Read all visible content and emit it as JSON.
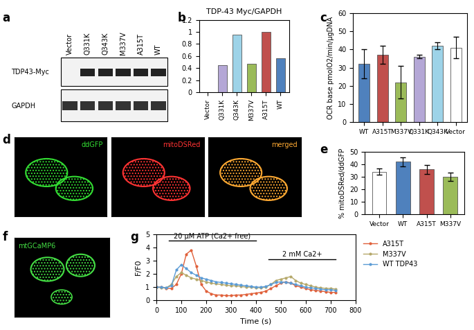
{
  "chart_data": [
    {
      "panel": "b",
      "type": "bar",
      "title": "TDP-43 Myc/GAPDH",
      "categories": [
        "Vector",
        "Q331K",
        "Q343K",
        "M337V",
        "A315T",
        "WT"
      ],
      "values": [
        0,
        0.45,
        0.95,
        0.47,
        1.0,
        0.56
      ],
      "colors": [
        "#ffffff",
        "#b4a7d6",
        "#9dd3e8",
        "#9bbb59",
        "#c0504d",
        "#4f81bd"
      ],
      "ylim": [
        0,
        1.2
      ],
      "yticks": [
        0,
        0.2,
        0.4,
        0.6,
        0.8,
        1,
        1.2
      ]
    },
    {
      "panel": "c",
      "type": "bar",
      "ylabel": "OCR base pmolO2/min/μgDNA",
      "categories": [
        "WT",
        "A315T",
        "M337V",
        "Q331K",
        "Q343K",
        "Vector"
      ],
      "values": [
        32,
        37,
        22,
        36,
        42,
        41
      ],
      "errors": [
        8,
        5,
        9,
        1,
        2,
        6
      ],
      "colors": [
        "#4f81bd",
        "#c0504d",
        "#9bbb59",
        "#b4a7d6",
        "#9dd3e8",
        "#ffffff"
      ],
      "ylim": [
        0,
        60
      ],
      "yticks": [
        0,
        10,
        20,
        30,
        40,
        50,
        60
      ]
    },
    {
      "panel": "e",
      "type": "bar",
      "ylabel": "% mitoDSRed/ddGFP",
      "categories": [
        "Vector",
        "WT",
        "A315T",
        "M337V"
      ],
      "values": [
        34,
        42,
        36,
        30
      ],
      "errors": [
        2.5,
        3.5,
        3.5,
        3.5
      ],
      "colors": [
        "#ffffff",
        "#4f81bd",
        "#c0504d",
        "#9bbb59"
      ],
      "ylim": [
        0,
        50
      ],
      "yticks": [
        0,
        10,
        20,
        30,
        40,
        50
      ]
    },
    {
      "panel": "g",
      "type": "line",
      "xlabel": "Time (s)",
      "ylabel": "F/F0",
      "x": [
        0,
        20,
        40,
        60,
        80,
        100,
        120,
        140,
        160,
        180,
        200,
        220,
        240,
        260,
        280,
        300,
        320,
        340,
        360,
        380,
        400,
        420,
        440,
        460,
        480,
        500,
        520,
        540,
        560,
        580,
        600,
        620,
        640,
        660,
        680,
        700,
        720
      ],
      "series": [
        {
          "name": "A315T",
          "color": "#e0603a",
          "marker": "o",
          "values": [
            1.0,
            1.0,
            0.9,
            0.9,
            1.2,
            2.0,
            3.5,
            3.8,
            2.6,
            1.2,
            0.7,
            0.5,
            0.4,
            0.4,
            0.35,
            0.35,
            0.4,
            0.4,
            0.45,
            0.5,
            0.55,
            0.6,
            0.7,
            0.9,
            1.1,
            1.3,
            1.4,
            1.3,
            1.1,
            1.0,
            0.9,
            0.8,
            0.75,
            0.7,
            0.65,
            0.6,
            0.6
          ]
        },
        {
          "name": "M337V",
          "color": "#b5a86a",
          "marker": "o",
          "values": [
            1.0,
            0.95,
            0.95,
            1.2,
            1.8,
            2.1,
            1.9,
            1.7,
            1.6,
            1.5,
            1.4,
            1.3,
            1.25,
            1.2,
            1.15,
            1.1,
            1.1,
            1.05,
            1.0,
            1.0,
            0.95,
            0.95,
            1.0,
            1.2,
            1.5,
            1.6,
            1.7,
            1.8,
            1.5,
            1.3,
            1.2,
            1.1,
            1.0,
            0.95,
            0.9,
            0.9,
            0.85
          ]
        },
        {
          "name": "WT TDP43",
          "color": "#5b9bd5",
          "marker": "o",
          "values": [
            1.0,
            1.0,
            0.95,
            1.1,
            2.3,
            2.7,
            2.4,
            2.1,
            1.9,
            1.7,
            1.6,
            1.5,
            1.4,
            1.35,
            1.3,
            1.25,
            1.2,
            1.15,
            1.1,
            1.05,
            1.0,
            1.0,
            1.05,
            1.2,
            1.35,
            1.4,
            1.35,
            1.3,
            1.2,
            1.1,
            1.0,
            0.95,
            0.9,
            0.85,
            0.8,
            0.8,
            0.75
          ]
        }
      ],
      "annotations": [
        {
          "text": "20 µM ATP (Ca2+ free)",
          "start": 50,
          "end": 400,
          "y": 4.5
        },
        {
          "text": "2 mM Ca2+",
          "start": 450,
          "end": 720,
          "y": 3.1
        }
      ],
      "xlim": [
        0,
        800
      ],
      "xticks": [
        0,
        100,
        200,
        300,
        400,
        500,
        600,
        700,
        800
      ],
      "ylim": [
        0,
        5
      ],
      "yticks": [
        0,
        1,
        2,
        3,
        4,
        5
      ],
      "legend": "right"
    }
  ],
  "images": [
    {
      "panel": "a",
      "columns": [
        "Vector",
        "Q331K",
        "Q343K",
        "M337V",
        "A315T",
        "WT"
      ],
      "rows": [
        "TDP43-Myc",
        "GAPDH"
      ]
    },
    {
      "panel": "d",
      "labels": [
        "ddGFP",
        "mitoDSRed",
        "merged"
      ]
    },
    {
      "panel": "f",
      "labels": [
        "mtGCaMP6"
      ]
    }
  ]
}
